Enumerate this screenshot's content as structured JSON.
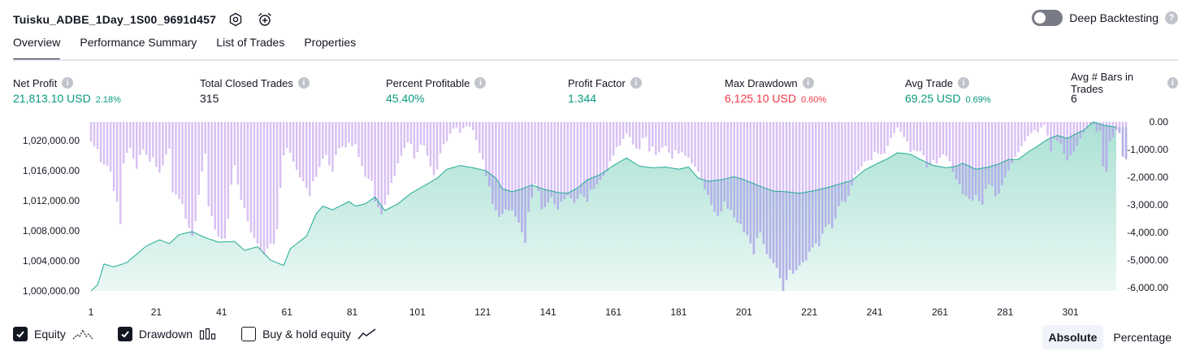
{
  "header": {
    "title": "Tuisku_ADBE_1Day_1S00_9691d457",
    "settings_icon": "gear-icon",
    "alert_icon": "alarm-clock-plus-icon",
    "deep_backtesting_label": "Deep Backtesting",
    "deep_backtesting_on": false,
    "help_glyph": "?"
  },
  "tabs": [
    {
      "label": "Overview",
      "active": true
    },
    {
      "label": "Performance Summary",
      "active": false
    },
    {
      "label": "List of Trades",
      "active": false
    },
    {
      "label": "Properties",
      "active": false
    }
  ],
  "metrics": [
    {
      "label": "Net Profit",
      "value": "21,813.10 USD",
      "sub": "2.18%",
      "color": "#089981"
    },
    {
      "label": "Total Closed Trades",
      "value": "315",
      "sub": "",
      "color": "#131722"
    },
    {
      "label": "Percent Profitable",
      "value": "45.40%",
      "sub": "",
      "color": "#089981"
    },
    {
      "label": "Profit Factor",
      "value": "1.344",
      "sub": "",
      "color": "#089981"
    },
    {
      "label": "Max Drawdown",
      "value": "6,125.10 USD",
      "sub": "0.60%",
      "color": "#f23645"
    },
    {
      "label": "Avg Trade",
      "value": "69.25 USD",
      "sub": "0.69%",
      "color": "#089981"
    },
    {
      "label": "Avg # Bars in Trades",
      "value": "6",
      "sub": "",
      "color": "#131722"
    }
  ],
  "info_glyph": "i",
  "chart_data": {
    "type": "area",
    "x_ticks": [
      "1",
      "21",
      "41",
      "61",
      "81",
      "101",
      "121",
      "141",
      "161",
      "181",
      "201",
      "221",
      "241",
      "261",
      "281",
      "301"
    ],
    "x_range": [
      1,
      315
    ],
    "left_axis": {
      "ticks": [
        "1,020,000.00",
        "1,016,000.00",
        "1,012,000.00",
        "1,008,000.00",
        "1,004,000.00",
        "1,000,000.00"
      ],
      "range": [
        1000000,
        1022500
      ]
    },
    "right_axis": {
      "ticks": [
        "0.00",
        "-1,000.00",
        "-2,000.00",
        "-3,000.00",
        "-4,000.00",
        "-5,000.00",
        "-6,000.00"
      ],
      "range": [
        -6125.1,
        0
      ]
    },
    "series": [
      {
        "name": "Equity",
        "color": "#22ab94",
        "anchors": [
          [
            1,
            1000000
          ],
          [
            3,
            1000800
          ],
          [
            5,
            1003600
          ],
          [
            8,
            1003200
          ],
          [
            12,
            1003800
          ],
          [
            18,
            1006000
          ],
          [
            22,
            1006800
          ],
          [
            25,
            1006300
          ],
          [
            28,
            1007500
          ],
          [
            32,
            1007900
          ],
          [
            36,
            1007100
          ],
          [
            40,
            1006500
          ],
          [
            45,
            1006600
          ],
          [
            48,
            1005400
          ],
          [
            52,
            1005900
          ],
          [
            56,
            1004100
          ],
          [
            60,
            1003400
          ],
          [
            62,
            1005600
          ],
          [
            67,
            1007300
          ],
          [
            70,
            1010300
          ],
          [
            72,
            1011300
          ],
          [
            75,
            1010800
          ],
          [
            80,
            1011900
          ],
          [
            82,
            1011300
          ],
          [
            85,
            1011600
          ],
          [
            88,
            1012500
          ],
          [
            91,
            1010700
          ],
          [
            95,
            1011600
          ],
          [
            99,
            1013000
          ],
          [
            103,
            1014000
          ],
          [
            107,
            1015000
          ],
          [
            110,
            1016200
          ],
          [
            114,
            1016700
          ],
          [
            118,
            1016400
          ],
          [
            122,
            1016000
          ],
          [
            125,
            1015000
          ],
          [
            127,
            1013600
          ],
          [
            130,
            1013200
          ],
          [
            133,
            1013600
          ],
          [
            136,
            1014100
          ],
          [
            140,
            1013500
          ],
          [
            144,
            1013100
          ],
          [
            147,
            1013000
          ],
          [
            150,
            1013700
          ],
          [
            153,
            1014800
          ],
          [
            157,
            1015500
          ],
          [
            161,
            1016700
          ],
          [
            165,
            1017700
          ],
          [
            169,
            1016600
          ],
          [
            173,
            1016400
          ],
          [
            177,
            1016500
          ],
          [
            181,
            1016200
          ],
          [
            184,
            1016500
          ],
          [
            187,
            1015000
          ],
          [
            190,
            1014600
          ],
          [
            194,
            1014800
          ],
          [
            198,
            1015200
          ],
          [
            201,
            1014800
          ],
          [
            205,
            1014100
          ],
          [
            208,
            1013600
          ],
          [
            210,
            1013300
          ],
          [
            214,
            1013200
          ],
          [
            218,
            1013000
          ],
          [
            222,
            1013300
          ],
          [
            226,
            1013700
          ],
          [
            230,
            1014200
          ],
          [
            234,
            1014700
          ],
          [
            238,
            1016100
          ],
          [
            242,
            1017000
          ],
          [
            245,
            1017600
          ],
          [
            248,
            1018400
          ],
          [
            252,
            1018200
          ],
          [
            255,
            1017500
          ],
          [
            259,
            1016700
          ],
          [
            263,
            1016400
          ],
          [
            266,
            1016600
          ],
          [
            268,
            1017000
          ],
          [
            272,
            1016200
          ],
          [
            276,
            1016500
          ],
          [
            279,
            1016900
          ],
          [
            282,
            1017500
          ],
          [
            285,
            1017500
          ],
          [
            288,
            1018500
          ],
          [
            291,
            1019300
          ],
          [
            294,
            1020200
          ],
          [
            297,
            1020700
          ],
          [
            300,
            1020300
          ],
          [
            303,
            1021000
          ],
          [
            305,
            1021400
          ],
          [
            308,
            1022500
          ],
          [
            310,
            1022200
          ],
          [
            312,
            1022000
          ],
          [
            315,
            1021800
          ]
        ]
      },
      {
        "name": "Drawdown",
        "color": "#d8c0f4",
        "overlap_color": "#b3b1e8",
        "values": [
          -720,
          -890,
          -980,
          -1460,
          -1550,
          -1590,
          -1800,
          -2500,
          -2890,
          -3710,
          -1500,
          -1120,
          -940,
          -1320,
          -1700,
          -1200,
          -1000,
          -1200,
          -1440,
          -1280,
          -1630,
          -1840,
          -1580,
          -1180,
          -970,
          -2550,
          -2630,
          -2800,
          -2980,
          -3510,
          -3830,
          -4120,
          -3600,
          -2650,
          -1800,
          -1150,
          -3060,
          -3420,
          -3900,
          -4160,
          -4240,
          -4230,
          -3510,
          -2270,
          -1570,
          -2270,
          -2830,
          -3120,
          -3600,
          -4010,
          -4210,
          -4410,
          -4620,
          -4800,
          -4590,
          -4410,
          -4420,
          -3890,
          -2390,
          -1210,
          -940,
          -1120,
          -1440,
          -1740,
          -2010,
          -2150,
          -2400,
          -2690,
          -2150,
          -1990,
          -1630,
          -1330,
          -1200,
          -1580,
          -1800,
          -1200,
          -960,
          -890,
          -920,
          -750,
          -880,
          -810,
          -1270,
          -1600,
          -1990,
          -2060,
          -2140,
          -2880,
          -3090,
          -3350,
          -3000,
          -2650,
          -2210,
          -1950,
          -1500,
          -1230,
          -960,
          -740,
          -800,
          -1320,
          -1100,
          -830,
          -860,
          -1220,
          -1610,
          -1930,
          -1720,
          -1140,
          -810,
          -700,
          -420,
          -250,
          -200,
          -400,
          -230,
          -150,
          -180,
          -300,
          -660,
          -1120,
          -1360,
          -1960,
          -2330,
          -2970,
          -3200,
          -3440,
          -3330,
          -3170,
          -3210,
          -3200,
          -3430,
          -3650,
          -4000,
          -4380,
          -3250,
          -2750,
          -2250,
          -2500,
          -3160,
          -3090,
          -2930,
          -2730,
          -2990,
          -3170,
          -2890,
          -2800,
          -2660,
          -2760,
          -2940,
          -2790,
          -2600,
          -2720,
          -2880,
          -2460,
          -2430,
          -2260,
          -2100,
          -1960,
          -1790,
          -1430,
          -1220,
          -910,
          -850,
          -620,
          -420,
          -540,
          -810,
          -970,
          -990,
          -590,
          -550,
          -1070,
          -900,
          -1200,
          -1100,
          -930,
          -870,
          -1120,
          -1330,
          -1020,
          -1150,
          -1100,
          -1220,
          -1290,
          -1500,
          -1620,
          -1800,
          -2100,
          -2460,
          -2650,
          -3000,
          -3260,
          -3410,
          -3250,
          -2880,
          -3140,
          -3190,
          -3460,
          -3650,
          -3700,
          -4000,
          -4100,
          -4400,
          -4800,
          -4210,
          -4000,
          -4420,
          -4780,
          -4950,
          -5110,
          -5280,
          -5660,
          -6120,
          -5730,
          -5360,
          -5500,
          -5370,
          -5200,
          -5080,
          -5020,
          -4700,
          -4550,
          -4400,
          -4500,
          -4050,
          -3800,
          -3700,
          -3850,
          -3500,
          -3050,
          -2870,
          -2900,
          -2670,
          -2310,
          -1910,
          -1770,
          -1610,
          -1440,
          -1400,
          -1380,
          -1080,
          -1140,
          -1170,
          -1140,
          -870,
          -580,
          -410,
          -200,
          -350,
          -550,
          -700,
          -1080,
          -1020,
          -1060,
          -1060,
          -1210,
          -1640,
          -1550,
          -1380,
          -1500,
          -1300,
          -1180,
          -1240,
          -1430,
          -1800,
          -2080,
          -2260,
          -2620,
          -2680,
          -2800,
          -2860,
          -2640,
          -2870,
          -3000,
          -2430,
          -2260,
          -2330,
          -2700,
          -2600,
          -2300,
          -2000,
          -1750,
          -1500,
          -1270,
          -1100,
          -880,
          -700,
          -520,
          -400,
          -300,
          -380,
          -200,
          -110,
          -490,
          -1060,
          -600,
          -690,
          -800,
          -1150,
          -1400,
          -1200,
          -1080,
          -850,
          -600,
          -400,
          -240,
          -80,
          -100,
          -360,
          -320,
          -1610,
          -1800,
          -700,
          -550,
          -300,
          -400,
          -1260,
          -1350
        ]
      }
    ]
  },
  "legend": [
    {
      "label": "Equity",
      "checked": true,
      "icon": "line-chart-icon"
    },
    {
      "label": "Drawdown",
      "checked": true,
      "icon": "bar-chart-icon"
    },
    {
      "label": "Buy & hold equity",
      "checked": false,
      "icon": "trend-line-icon"
    }
  ],
  "mode": [
    {
      "label": "Absolute",
      "active": true
    },
    {
      "label": "Percentage",
      "active": false
    }
  ]
}
